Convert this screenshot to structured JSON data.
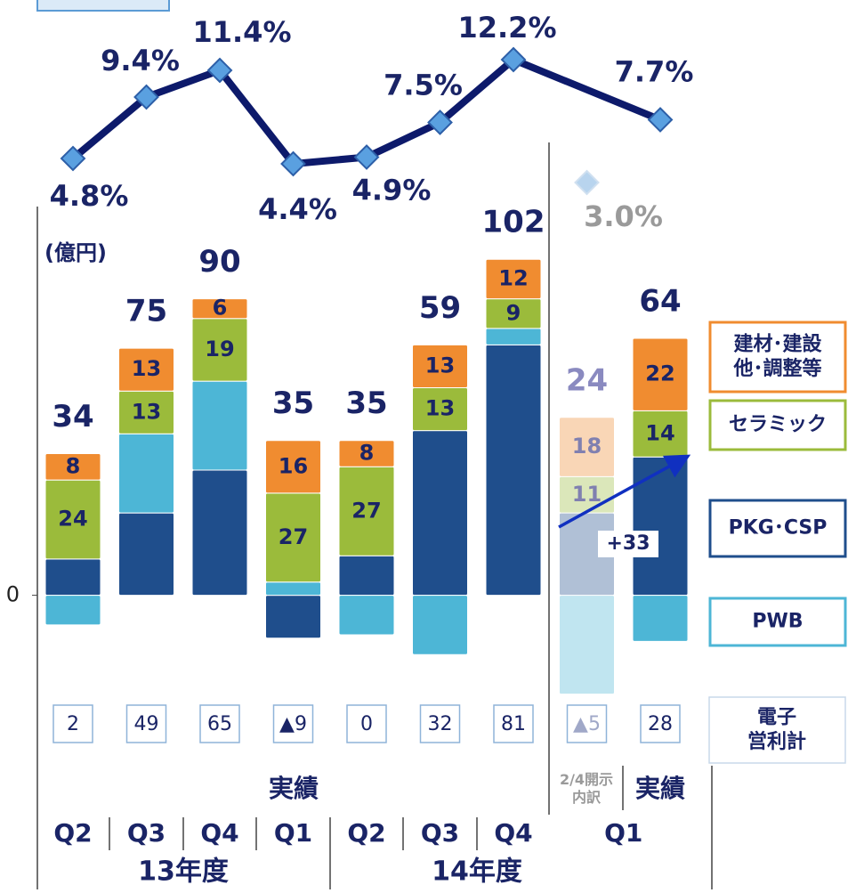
{
  "chart_data": {
    "type": "bar",
    "stacked": true,
    "unit_label": "(億円)",
    "categories": [
      "Q2",
      "Q3",
      "Q4",
      "Q1",
      "Q2",
      "Q3",
      "Q4",
      "Q1",
      null
    ],
    "faded": [
      false,
      false,
      false,
      false,
      false,
      false,
      false,
      true,
      false
    ],
    "status_labels": [
      "実績",
      "2/4開示\n内訳",
      "実績"
    ],
    "year_groups": [
      "13年度",
      "14年度"
    ],
    "ylim": [
      -35,
      118
    ],
    "yticks": [
      0
    ],
    "y2lim": [
      0,
      15
    ],
    "series": [
      {
        "name": "PKG･CSP",
        "color": "#1f4e8c",
        "labeled": false,
        "values": [
          11,
          25,
          38,
          -13,
          12,
          50,
          76,
          25,
          42
        ]
      },
      {
        "name": "PWB",
        "color": "#4db6d6",
        "labeled": false,
        "values": [
          -9,
          24,
          27,
          4,
          -12,
          -18,
          5,
          -30,
          -14
        ]
      },
      {
        "name": "セラミック",
        "color": "#9bbb3b",
        "labeled": true,
        "values": [
          24,
          13,
          19,
          27,
          27,
          13,
          9,
          11,
          14
        ]
      },
      {
        "name": "建材･建設\n他･調整等",
        "color": "#f08c30",
        "labeled": true,
        "values": [
          8,
          13,
          6,
          16,
          8,
          13,
          12,
          18,
          22
        ]
      },
      {
        "name": "margin",
        "type": "line",
        "axis": "y2",
        "color": "#0d1a6b",
        "values": [
          4.8,
          9.4,
          11.4,
          4.4,
          4.9,
          7.5,
          12.2,
          3.0,
          7.7
        ],
        "value_labels": [
          "4.8%",
          "9.4%",
          "11.4%",
          "4.4%",
          "4.9%",
          "7.5%",
          "12.2%",
          "3.0%",
          "7.7%"
        ]
      }
    ],
    "totals": [
      34,
      75,
      90,
      35,
      35,
      59,
      102,
      24,
      64
    ],
    "electronics": {
      "name": "電子\n営利計",
      "values": [
        2,
        49,
        65,
        -9,
        0,
        32,
        81,
        -5,
        28
      ],
      "value_labels": [
        "2",
        "49",
        "65",
        "▲9",
        "0",
        "32",
        "81",
        "▲5",
        "28"
      ]
    },
    "annotation": "+33"
  }
}
